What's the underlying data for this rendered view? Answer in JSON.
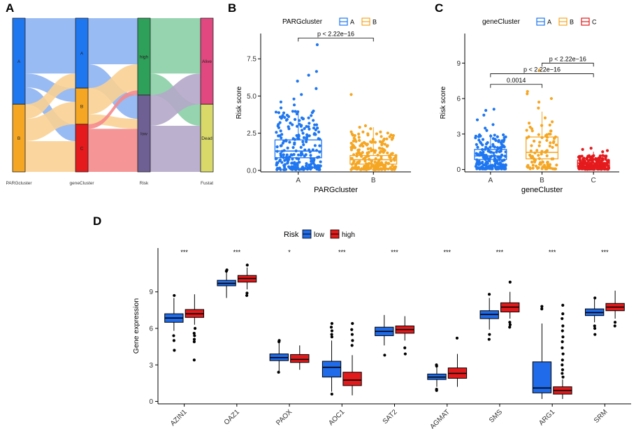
{
  "panels": {
    "a": "A",
    "b": "B",
    "c": "C",
    "d": "D"
  },
  "colors": {
    "A": "#1F77F0",
    "B": "#F5A623",
    "C": "#E41A1C",
    "low": "#1F6BEA",
    "high": "#E31A1C",
    "riskHigh": "#2EA05A",
    "riskLow": "#6F6094",
    "alive": "#E1487F",
    "dead": "#D9D96A",
    "flowBlue": "#8EB4F2",
    "flowOrange": "#FAD294",
    "flowRed": "#F58A8A",
    "flowGreen": "#8ACFA6",
    "flowPurple": "#B4A9C9"
  },
  "chart_data": [
    {
      "type": "sankey",
      "id": "a",
      "axes": [
        "PARGcluster",
        "geneCluster",
        "Risk",
        "Fustat"
      ],
      "nodes": [
        {
          "axis": 0,
          "label": "A",
          "weight": 0.56,
          "color_key": "A"
        },
        {
          "axis": 0,
          "label": "B",
          "weight": 0.44,
          "color_key": "B"
        },
        {
          "axis": 1,
          "label": "A",
          "weight": 0.455,
          "color_key": "A"
        },
        {
          "axis": 1,
          "label": "B",
          "weight": 0.235,
          "color_key": "B"
        },
        {
          "axis": 1,
          "label": "C",
          "weight": 0.31,
          "color_key": "C"
        },
        {
          "axis": 2,
          "label": "high",
          "weight": 0.5,
          "color_key": "riskHigh"
        },
        {
          "axis": 2,
          "label": "low",
          "weight": 0.5,
          "color_key": "riskLow"
        },
        {
          "axis": 3,
          "label": "Alive",
          "weight": 0.56,
          "color_key": "alive"
        },
        {
          "axis": 3,
          "label": "Dead",
          "weight": 0.44,
          "color_key": "dead"
        }
      ],
      "flows": [
        {
          "from": 0,
          "fromNode": "A",
          "toNode": "A",
          "value": 0.36,
          "color_key": "flowBlue"
        },
        {
          "from": 0,
          "fromNode": "A",
          "toNode": "B",
          "value": 0.09,
          "color_key": "flowBlue"
        },
        {
          "from": 0,
          "fromNode": "A",
          "toNode": "C",
          "value": 0.11,
          "color_key": "flowBlue"
        },
        {
          "from": 0,
          "fromNode": "B",
          "toNode": "A",
          "value": 0.095,
          "color_key": "flowOrange"
        },
        {
          "from": 0,
          "fromNode": "B",
          "toNode": "B",
          "value": 0.145,
          "color_key": "flowOrange"
        },
        {
          "from": 0,
          "fromNode": "B",
          "toNode": "C",
          "value": 0.2,
          "color_key": "flowOrange"
        },
        {
          "from": 1,
          "fromNode": "A",
          "toNode": "high",
          "value": 0.3,
          "color_key": "flowBlue"
        },
        {
          "from": 1,
          "fromNode": "A",
          "toNode": "low",
          "value": 0.155,
          "color_key": "flowBlue"
        },
        {
          "from": 1,
          "fromNode": "B",
          "toNode": "high",
          "value": 0.17,
          "color_key": "flowOrange"
        },
        {
          "from": 1,
          "fromNode": "B",
          "toNode": "low",
          "value": 0.065,
          "color_key": "flowOrange"
        },
        {
          "from": 1,
          "fromNode": "C",
          "toNode": "high",
          "value": 0.03,
          "color_key": "flowRed"
        },
        {
          "from": 1,
          "fromNode": "C",
          "toNode": "low",
          "value": 0.28,
          "color_key": "flowRed"
        },
        {
          "from": 2,
          "fromNode": "high",
          "toNode": "Alive",
          "value": 0.36,
          "color_key": "flowGreen"
        },
        {
          "from": 2,
          "fromNode": "high",
          "toNode": "Dead",
          "value": 0.14,
          "color_key": "flowGreen"
        },
        {
          "from": 2,
          "fromNode": "low",
          "toNode": "Alive",
          "value": 0.2,
          "color_key": "flowPurple"
        },
        {
          "from": 2,
          "fromNode": "low",
          "toNode": "Dead",
          "value": 0.3,
          "color_key": "flowPurple"
        }
      ]
    },
    {
      "type": "boxplot",
      "id": "b",
      "legend_title": "PARGcluster",
      "legend_labels": [
        "A",
        "B"
      ],
      "xlabel": "PARGcluster",
      "ylabel": "Risk score",
      "ylim": [
        -0.1,
        9.2
      ],
      "yticks": [
        0,
        2.5,
        5,
        7.5
      ],
      "ytick_labels": [
        "0.0",
        "2.5",
        "5.0",
        "7.5"
      ],
      "categories": [
        "A",
        "B"
      ],
      "color_keys": [
        "A",
        "B"
      ],
      "boxes": [
        {
          "q1": 0.85,
          "median": 1.3,
          "q3": 2.05,
          "lo": 0.05,
          "hi": 3.9
        },
        {
          "q1": 0.42,
          "median": 0.72,
          "q3": 1.0,
          "lo": 0.05,
          "hi": 2.9
        }
      ],
      "points": [
        {
          "n": 230,
          "min": 0.05,
          "max": 4.0,
          "outliers": [
            8.45,
            6.65,
            6.4,
            6.0,
            5.5,
            5.1,
            4.8,
            4.6,
            4.4,
            4.2
          ]
        },
        {
          "n": 220,
          "min": 0.05,
          "max": 2.6,
          "outliers": [
            5.1,
            3.0,
            2.9,
            2.8
          ]
        }
      ],
      "comparisons": [
        {
          "from": 0,
          "to": 1,
          "label": "p < 2.22e−16",
          "y": 8.9
        }
      ]
    },
    {
      "type": "boxplot",
      "id": "c",
      "legend_title": "geneCluster",
      "legend_labels": [
        "A",
        "B",
        "C"
      ],
      "xlabel": "geneCluster",
      "ylabel": "Risk score",
      "ylim": [
        -0.2,
        11.5
      ],
      "yticks": [
        0,
        3,
        6,
        9
      ],
      "ytick_labels": [
        "0",
        "3",
        "6",
        "9"
      ],
      "categories": [
        "A",
        "B",
        "C"
      ],
      "color_keys": [
        "A",
        "B",
        "C"
      ],
      "boxes": [
        {
          "q1": 0.85,
          "median": 1.15,
          "q3": 1.7,
          "lo": 0.05,
          "hi": 3.0
        },
        {
          "q1": 0.9,
          "median": 1.45,
          "q3": 2.75,
          "lo": 0.05,
          "hi": 4.9
        },
        {
          "q1": 0.3,
          "median": 0.55,
          "q3": 0.8,
          "lo": 0.02,
          "hi": 1.5
        }
      ],
      "points": [
        {
          "n": 200,
          "min": 0.05,
          "max": 3.0,
          "outliers": [
            5.1,
            5.0,
            4.6,
            4.2,
            3.8,
            3.5,
            3.3
          ]
        },
        {
          "n": 95,
          "min": 0.05,
          "max": 4.8,
          "outliers": [
            8.4,
            6.6,
            6.4,
            6.0,
            5.7,
            5.2
          ]
        },
        {
          "n": 190,
          "min": 0.02,
          "max": 1.2,
          "outliers": [
            1.8,
            1.7,
            1.6,
            1.5
          ]
        }
      ],
      "comparisons": [
        {
          "from": 0,
          "to": 1,
          "label": "0.0014",
          "y": 7.2
        },
        {
          "from": 0,
          "to": 2,
          "label": "p < 2.22e−16",
          "y": 8.1
        },
        {
          "from": 1,
          "to": 2,
          "label": "p < 2.22e−16",
          "y": 9.0
        }
      ]
    },
    {
      "type": "grouped-boxplot",
      "id": "d",
      "legend_title": "Risk",
      "legend_labels": [
        "low",
        "high"
      ],
      "ylabel": "Gene expression",
      "ylim": [
        -0.2,
        12.6
      ],
      "yticks": [
        0,
        3,
        6,
        9
      ],
      "ytick_labels": [
        "0",
        "3",
        "6",
        "9"
      ],
      "categories": [
        "AZIN1",
        "OAZ1",
        "PAOX",
        "AOC1",
        "SAT2",
        "AGMAT",
        "SMS",
        "ARG1",
        "SRM"
      ],
      "significance": [
        "***",
        "***",
        "*",
        "***",
        "***",
        "***",
        "***",
        "***",
        "***"
      ],
      "series": [
        {
          "name": "low",
          "color_key": "low",
          "boxes": [
            {
              "q1": 6.5,
              "median": 6.85,
              "q3": 7.2,
              "lo": 5.8,
              "hi": 8.5,
              "outliers": [
                5.4,
                5.0,
                4.2,
                8.7
              ]
            },
            {
              "q1": 9.5,
              "median": 9.7,
              "q3": 9.95,
              "lo": 8.5,
              "hi": 10.6,
              "outliers": [
                10.7,
                10.8
              ]
            },
            {
              "q1": 3.35,
              "median": 3.6,
              "q3": 3.9,
              "lo": 2.5,
              "hi": 4.8,
              "outliers": [
                5.0,
                4.9,
                2.4
              ]
            },
            {
              "q1": 2.0,
              "median": 2.8,
              "q3": 3.3,
              "lo": 0.8,
              "hi": 5.0,
              "outliers": [
                6.4,
                6.1,
                5.8,
                5.5,
                5.3,
                0.6
              ]
            },
            {
              "q1": 5.4,
              "median": 5.75,
              "q3": 6.1,
              "lo": 4.6,
              "hi": 7.1,
              "outliers": [
                3.8
              ]
            },
            {
              "q1": 1.8,
              "median": 2.0,
              "q3": 2.25,
              "lo": 1.2,
              "hi": 2.8,
              "outliers": [
                3.0,
                2.9,
                1.0,
                0.9
              ]
            },
            {
              "q1": 6.8,
              "median": 7.15,
              "q3": 7.45,
              "lo": 5.9,
              "hi": 8.5,
              "outliers": [
                5.5,
                5.1,
                8.8
              ]
            },
            {
              "q1": 0.7,
              "median": 1.1,
              "q3": 3.25,
              "lo": 0.2,
              "hi": 6.4,
              "outliers": [
                7.8,
                7.6
              ]
            },
            {
              "q1": 7.05,
              "median": 7.3,
              "q3": 7.6,
              "lo": 6.5,
              "hi": 8.4,
              "outliers": [
                6.2,
                6.0,
                5.5,
                8.5
              ]
            }
          ]
        },
        {
          "name": "high",
          "color_key": "high",
          "boxes": [
            {
              "q1": 6.9,
              "median": 7.2,
              "q3": 7.55,
              "lo": 6.3,
              "hi": 8.8,
              "outliers": [
                6.0,
                5.6,
                5.4,
                5.1,
                4.9,
                3.4
              ]
            },
            {
              "q1": 9.8,
              "median": 10.1,
              "q3": 10.35,
              "lo": 9.2,
              "hi": 11.0,
              "outliers": [
                8.9,
                8.7,
                11.2
              ]
            },
            {
              "q1": 3.2,
              "median": 3.45,
              "q3": 3.85,
              "lo": 2.6,
              "hi": 4.6,
              "outliers": []
            },
            {
              "q1": 1.3,
              "median": 1.75,
              "q3": 2.4,
              "lo": 0.5,
              "hi": 3.8,
              "outliers": [
                6.4,
                5.9,
                5.5,
                5.0,
                4.6
              ]
            },
            {
              "q1": 5.6,
              "median": 5.9,
              "q3": 6.2,
              "lo": 5.0,
              "hi": 7.0,
              "outliers": [
                4.4,
                3.9
              ]
            },
            {
              "q1": 1.9,
              "median": 2.3,
              "q3": 2.75,
              "lo": 1.2,
              "hi": 3.9,
              "outliers": [
                5.2
              ]
            },
            {
              "q1": 7.35,
              "median": 7.75,
              "q3": 8.1,
              "lo": 6.8,
              "hi": 9.0,
              "outliers": [
                6.5,
                6.3,
                6.1,
                9.8
              ]
            },
            {
              "q1": 0.6,
              "median": 0.9,
              "q3": 1.2,
              "lo": 0.2,
              "hi": 1.8,
              "outliers": [
                7.9,
                7.2,
                6.8,
                6.2,
                5.8,
                5.3,
                4.9,
                4.4,
                3.9,
                3.4,
                3.0,
                2.6,
                2.3,
                2.0
              ]
            },
            {
              "q1": 7.45,
              "median": 7.75,
              "q3": 8.05,
              "lo": 6.8,
              "hi": 9.1,
              "outliers": [
                6.5,
                6.2
              ]
            }
          ]
        }
      ]
    }
  ]
}
